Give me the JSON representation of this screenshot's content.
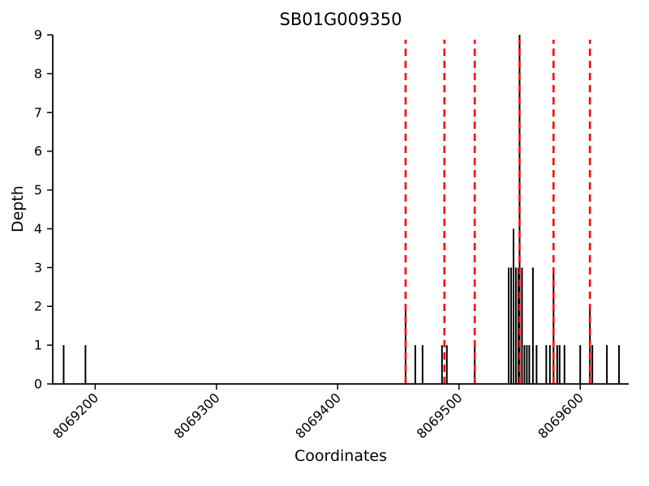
{
  "chart_data": {
    "type": "bar",
    "title": "SB01G009350",
    "xlabel": "Coordinates",
    "ylabel": "Depth",
    "xlim": [
      8069165,
      8069640
    ],
    "ylim": [
      0,
      9
    ],
    "xticks": [
      8069200,
      8069300,
      8069400,
      8069500,
      8069600
    ],
    "yticks": [
      0,
      1,
      2,
      3,
      4,
      5,
      6,
      7,
      8,
      9
    ],
    "grid": false,
    "legend": "none",
    "bar_color": "#000000",
    "vline_color": "#ff0000",
    "vlines": [
      8069456,
      8069488,
      8069513,
      8069550,
      8069578,
      8069608
    ],
    "bars": [
      {
        "x": 8069174,
        "depth": 1
      },
      {
        "x": 8069192,
        "depth": 1
      },
      {
        "x": 8069456,
        "depth": 2
      },
      {
        "x": 8069464,
        "depth": 1
      },
      {
        "x": 8069470,
        "depth": 1
      },
      {
        "x": 8069486,
        "depth": 1
      },
      {
        "x": 8069490,
        "depth": 1
      },
      {
        "x": 8069513,
        "depth": 1
      },
      {
        "x": 8069541,
        "depth": 3
      },
      {
        "x": 8069543,
        "depth": 3
      },
      {
        "x": 8069545,
        "depth": 4
      },
      {
        "x": 8069547,
        "depth": 3
      },
      {
        "x": 8069549,
        "depth": 3
      },
      {
        "x": 8069550,
        "depth": 9
      },
      {
        "x": 8069552,
        "depth": 3
      },
      {
        "x": 8069554,
        "depth": 1
      },
      {
        "x": 8069556,
        "depth": 1
      },
      {
        "x": 8069558,
        "depth": 1
      },
      {
        "x": 8069561,
        "depth": 3
      },
      {
        "x": 8069564,
        "depth": 1
      },
      {
        "x": 8069572,
        "depth": 1
      },
      {
        "x": 8069575,
        "depth": 1
      },
      {
        "x": 8069578,
        "depth": 3
      },
      {
        "x": 8069581,
        "depth": 1
      },
      {
        "x": 8069583,
        "depth": 1
      },
      {
        "x": 8069587,
        "depth": 1
      },
      {
        "x": 8069600,
        "depth": 1
      },
      {
        "x": 8069608,
        "depth": 2
      },
      {
        "x": 8069610,
        "depth": 1
      },
      {
        "x": 8069622,
        "depth": 1
      },
      {
        "x": 8069632,
        "depth": 1
      }
    ]
  }
}
